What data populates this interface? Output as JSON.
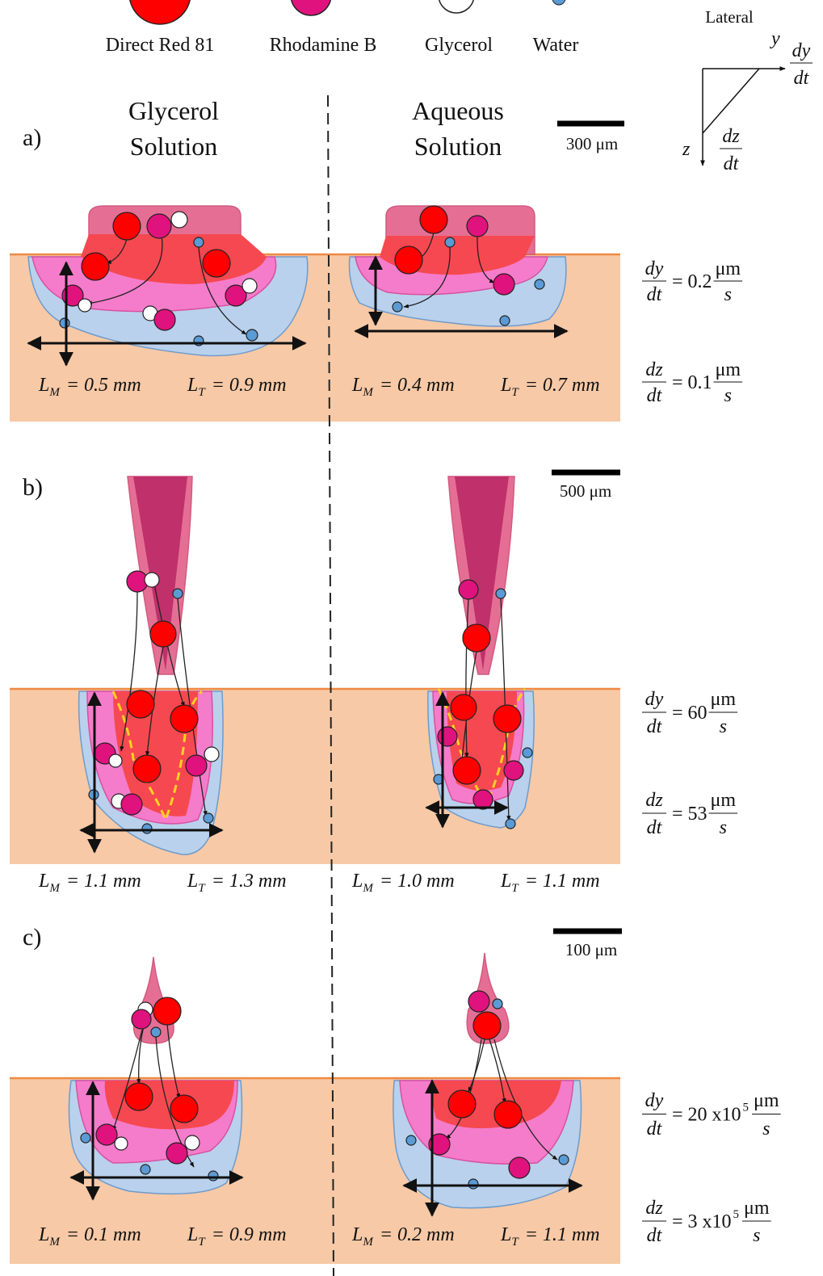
{
  "legend": [
    "Direct Red 81",
    "Rhodamine B",
    "Glycerol",
    "Water"
  ],
  "axes": {
    "title": "Lateral",
    "y": "y",
    "z": "z",
    "dy_num": "dy",
    "dy_den": "dt",
    "dz_num": "dz",
    "dz_den": "dt"
  },
  "columns": [
    [
      "Glycerol",
      "Solution"
    ],
    [
      "Aqueous",
      "Solution"
    ]
  ],
  "panels": [
    {
      "label": "a)",
      "scale_bar": "300 μm",
      "measurements": [
        {
          "symbol": "L",
          "subscript": "M",
          "text": "= 0.5 mm"
        },
        {
          "symbol": "L",
          "subscript": "T",
          "text": "= 0.9 mm"
        },
        {
          "symbol": "L",
          "subscript": "M",
          "text": "= 0.4 mm"
        },
        {
          "symbol": "L",
          "subscript": "T",
          "text": "= 0.7 mm"
        }
      ],
      "rates": [
        {
          "num": "dy",
          "den": "dt",
          "value": "= 0.2",
          "unit_num": "μm",
          "unit_den": "s"
        },
        {
          "num": "dz",
          "den": "dt",
          "value": "= 0.1",
          "unit_num": "μm",
          "unit_den": "s"
        }
      ]
    },
    {
      "label": "b)",
      "scale_bar": "500 μm",
      "measurements": [
        {
          "symbol": "L",
          "subscript": "M",
          "text": "= 1.1 mm"
        },
        {
          "symbol": "L",
          "subscript": "T",
          "text": "= 1.3 mm"
        },
        {
          "symbol": "L",
          "subscript": "M",
          "text": "= 1.0 mm"
        },
        {
          "symbol": "L",
          "subscript": "T",
          "text": "= 1.1 mm"
        }
      ],
      "rates": [
        {
          "num": "dy",
          "den": "dt",
          "value": "= 60",
          "unit_num": "μm",
          "unit_den": "s"
        },
        {
          "num": "dz",
          "den": "dt",
          "value": "= 53",
          "unit_num": "μm",
          "unit_den": "s"
        }
      ]
    },
    {
      "label": "c)",
      "scale_bar": "100 μm",
      "measurements": [
        {
          "symbol": "L",
          "subscript": "M",
          "text": "= 0.1 mm"
        },
        {
          "symbol": "L",
          "subscript": "T",
          "text": "= 0.9 mm"
        },
        {
          "symbol": "L",
          "subscript": "M",
          "text": "= 0.2 mm"
        },
        {
          "symbol": "L",
          "subscript": "T",
          "text": "= 1.1 mm"
        }
      ],
      "rates": [
        {
          "num": "dy",
          "den": "dt",
          "value": "= 20 x10",
          "exponent": "5",
          "unit_num": "μm",
          "unit_den": "s"
        },
        {
          "num": "dz",
          "den": "dt",
          "value": "= 3 x10",
          "exponent": "5",
          "unit_num": "μm",
          "unit_den": "s"
        }
      ]
    }
  ]
}
